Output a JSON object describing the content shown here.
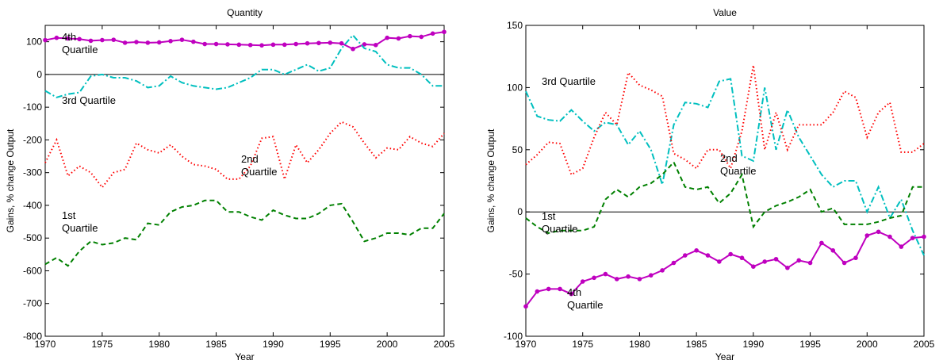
{
  "chart_data": [
    {
      "type": "line",
      "title": "Quantity",
      "xlabel": "Year",
      "ylabel": "Gains, % change Output",
      "x": [
        1970,
        1971,
        1972,
        1973,
        1974,
        1975,
        1976,
        1977,
        1978,
        1979,
        1980,
        1981,
        1982,
        1983,
        1984,
        1985,
        1986,
        1987,
        1988,
        1989,
        1990,
        1991,
        1992,
        1993,
        1994,
        1995,
        1996,
        1997,
        1998,
        1999,
        2000,
        2001,
        2002,
        2003,
        2004,
        2005
      ],
      "xlim": [
        1970,
        2005
      ],
      "xticks": [
        1970,
        1975,
        1980,
        1985,
        1990,
        1995,
        2000,
        2005
      ],
      "ylim": [
        -800,
        150
      ],
      "yticks": [
        -800,
        -700,
        -600,
        -500,
        -400,
        -300,
        -200,
        -100,
        0,
        100
      ],
      "reference_line": 0,
      "series": [
        {
          "color": "#bf00bf",
          "style": "solid",
          "marker": "o",
          "values": [
            105,
            112,
            110,
            108,
            103,
            105,
            106,
            97,
            99,
            97,
            98,
            102,
            106,
            100,
            93,
            93,
            92,
            91,
            90,
            89,
            91,
            91,
            93,
            95,
            96,
            97,
            95,
            78,
            92,
            90,
            112,
            110,
            117,
            115,
            125,
            130
          ]
        },
        {
          "color": "#00bfbf",
          "style": "dashdot",
          "values": [
            -50,
            -70,
            -60,
            -55,
            -5,
            0,
            -10,
            -10,
            -20,
            -40,
            -35,
            -5,
            -25,
            -35,
            -40,
            -45,
            -40,
            -25,
            -10,
            15,
            15,
            0,
            15,
            30,
            10,
            20,
            80,
            120,
            80,
            70,
            30,
            20,
            20,
            0,
            -35,
            -35
          ]
        },
        {
          "color": "#ff0000",
          "style": "dotted",
          "values": [
            -270,
            -200,
            -310,
            -280,
            -300,
            -345,
            -300,
            -290,
            -210,
            -230,
            -240,
            -215,
            -250,
            -275,
            -280,
            -290,
            -320,
            -320,
            -280,
            -195,
            -190,
            -320,
            -215,
            -270,
            -230,
            -180,
            -145,
            -160,
            -210,
            -255,
            -225,
            -230,
            -190,
            -210,
            -220,
            -180
          ]
        },
        {
          "color": "#008000",
          "style": "dashed",
          "values": [
            -580,
            -560,
            -585,
            -540,
            -510,
            -520,
            -515,
            -500,
            -505,
            -455,
            -460,
            -420,
            -405,
            -400,
            -385,
            -385,
            -420,
            -420,
            -435,
            -445,
            -415,
            -430,
            -440,
            -440,
            -425,
            -400,
            -395,
            -450,
            -510,
            -500,
            -485,
            -485,
            -490,
            -470,
            -470,
            -425
          ]
        }
      ],
      "annotations": [
        {
          "text": [
            "4th",
            "Quartile"
          ],
          "color": "#bf00bf"
        },
        {
          "text": [
            "3rd Quartile"
          ],
          "color": "#00bfbf"
        },
        {
          "text": [
            "2nd",
            "Quartile"
          ],
          "color": "#ff0000"
        },
        {
          "text": [
            "1st",
            "Quartile"
          ],
          "color": "#008000"
        }
      ]
    },
    {
      "type": "line",
      "title": "Value",
      "xlabel": "Year",
      "ylabel": "Gains, % change Output",
      "x": [
        1970,
        1971,
        1972,
        1973,
        1974,
        1975,
        1976,
        1977,
        1978,
        1979,
        1980,
        1981,
        1982,
        1983,
        1984,
        1985,
        1986,
        1987,
        1988,
        1989,
        1990,
        1991,
        1992,
        1993,
        1994,
        1995,
        1996,
        1997,
        1998,
        1999,
        2000,
        2001,
        2002,
        2003,
        2004,
        2005
      ],
      "xlim": [
        1970,
        2005
      ],
      "xticks": [
        1970,
        1975,
        1980,
        1985,
        1990,
        1995,
        2000,
        2005
      ],
      "ylim": [
        -100,
        150
      ],
      "yticks": [
        -100,
        -50,
        0,
        50,
        100,
        150
      ],
      "reference_line": 0,
      "series": [
        {
          "color": "#bf00bf",
          "style": "solid",
          "marker": "o",
          "values": [
            -76,
            -64,
            -62,
            -62,
            -66,
            -56,
            -53,
            -50,
            -54,
            -52,
            -54,
            -51,
            -47,
            -41,
            -35,
            -31,
            -35,
            -40,
            -34,
            -37,
            -44,
            -40,
            -38,
            -45,
            -39,
            -41,
            -25,
            -31,
            -41,
            -37,
            -19,
            -16,
            -20,
            -28,
            -21,
            -20
          ]
        },
        {
          "color": "#00bfbf",
          "style": "dashdot",
          "values": [
            97,
            77,
            74,
            73,
            82,
            73,
            65,
            72,
            70,
            54,
            65,
            50,
            22,
            70,
            88,
            87,
            84,
            105,
            107,
            45,
            41,
            100,
            50,
            82,
            60,
            45,
            30,
            20,
            25,
            25,
            0,
            20,
            -5,
            10,
            -15,
            -35
          ]
        },
        {
          "color": "#ff0000",
          "style": "dotted",
          "values": [
            38,
            46,
            56,
            55,
            30,
            35,
            60,
            80,
            70,
            112,
            102,
            98,
            93,
            47,
            42,
            35,
            50,
            50,
            35,
            65,
            118,
            50,
            80,
            50,
            70,
            70,
            70,
            80,
            97,
            92,
            60,
            80,
            88,
            48,
            48,
            55
          ]
        },
        {
          "color": "#008000",
          "style": "dashed",
          "values": [
            -5,
            -12,
            -17,
            -15,
            -15,
            -15,
            -12,
            10,
            18,
            12,
            20,
            23,
            30,
            40,
            20,
            18,
            20,
            7,
            15,
            30,
            -12,
            0,
            5,
            8,
            12,
            18,
            0,
            3,
            -10,
            -10,
            -10,
            -8,
            -5,
            -3,
            20,
            20
          ]
        }
      ],
      "annotations": [
        {
          "text": [
            "4th",
            "Quartile"
          ],
          "color": "#bf00bf"
        },
        {
          "text": [
            "3rd Quartile"
          ],
          "color": "#00bfbf"
        },
        {
          "text": [
            "2nd",
            "Quartile"
          ],
          "color": "#ff0000"
        },
        {
          "text": [
            "1st",
            "Quartile"
          ],
          "color": "#008000"
        }
      ]
    }
  ]
}
